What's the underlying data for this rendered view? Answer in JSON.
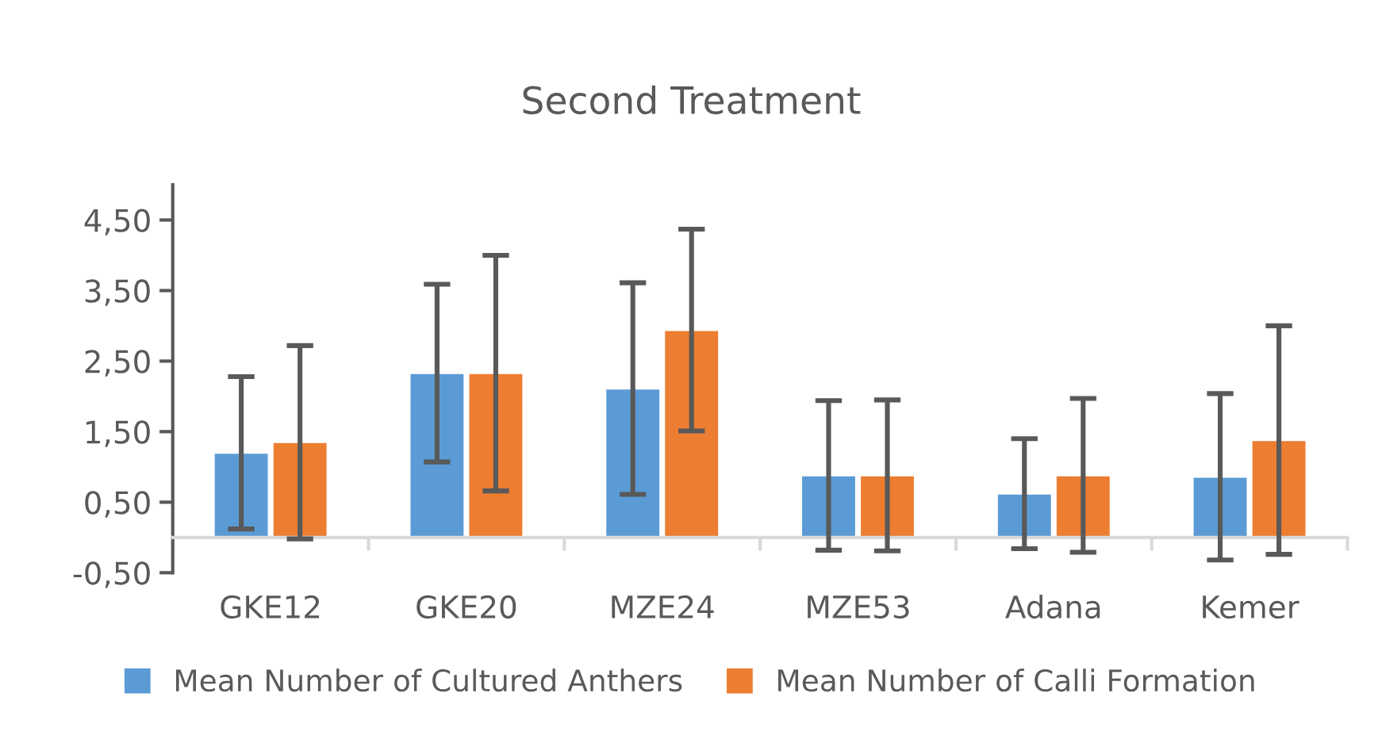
{
  "chart_data": {
    "type": "bar",
    "title": "Second Treatment",
    "categories": [
      "GKE12",
      "GKE20",
      "MZE24",
      "MZE53",
      "Adana",
      "Kemer"
    ],
    "series": [
      {
        "name": "Mean Number of Cultured Anthers",
        "color": "#5b9bd5",
        "values": [
          1.2,
          2.33,
          2.11,
          0.88,
          0.62,
          0.86
        ],
        "errors": [
          1.08,
          1.26,
          1.5,
          1.06,
          0.78,
          1.18
        ]
      },
      {
        "name": "Mean Number of Calli Formation",
        "color": "#ed7d31",
        "values": [
          1.35,
          2.33,
          2.94,
          0.88,
          0.88,
          1.38
        ],
        "errors": [
          1.37,
          1.67,
          1.43,
          1.07,
          1.09,
          1.62
        ]
      }
    ],
    "ylim": [
      -0.5,
      5
    ],
    "yticks": [
      {
        "value": -0.5,
        "label": "-0,50"
      },
      {
        "value": 0.5,
        "label": "0,50"
      },
      {
        "value": 1.5,
        "label": "1,50"
      },
      {
        "value": 2.5,
        "label": "2,50"
      },
      {
        "value": 3.5,
        "label": "3,50"
      },
      {
        "value": 4.5,
        "label": "4,50"
      }
    ],
    "legend": "bottom"
  }
}
